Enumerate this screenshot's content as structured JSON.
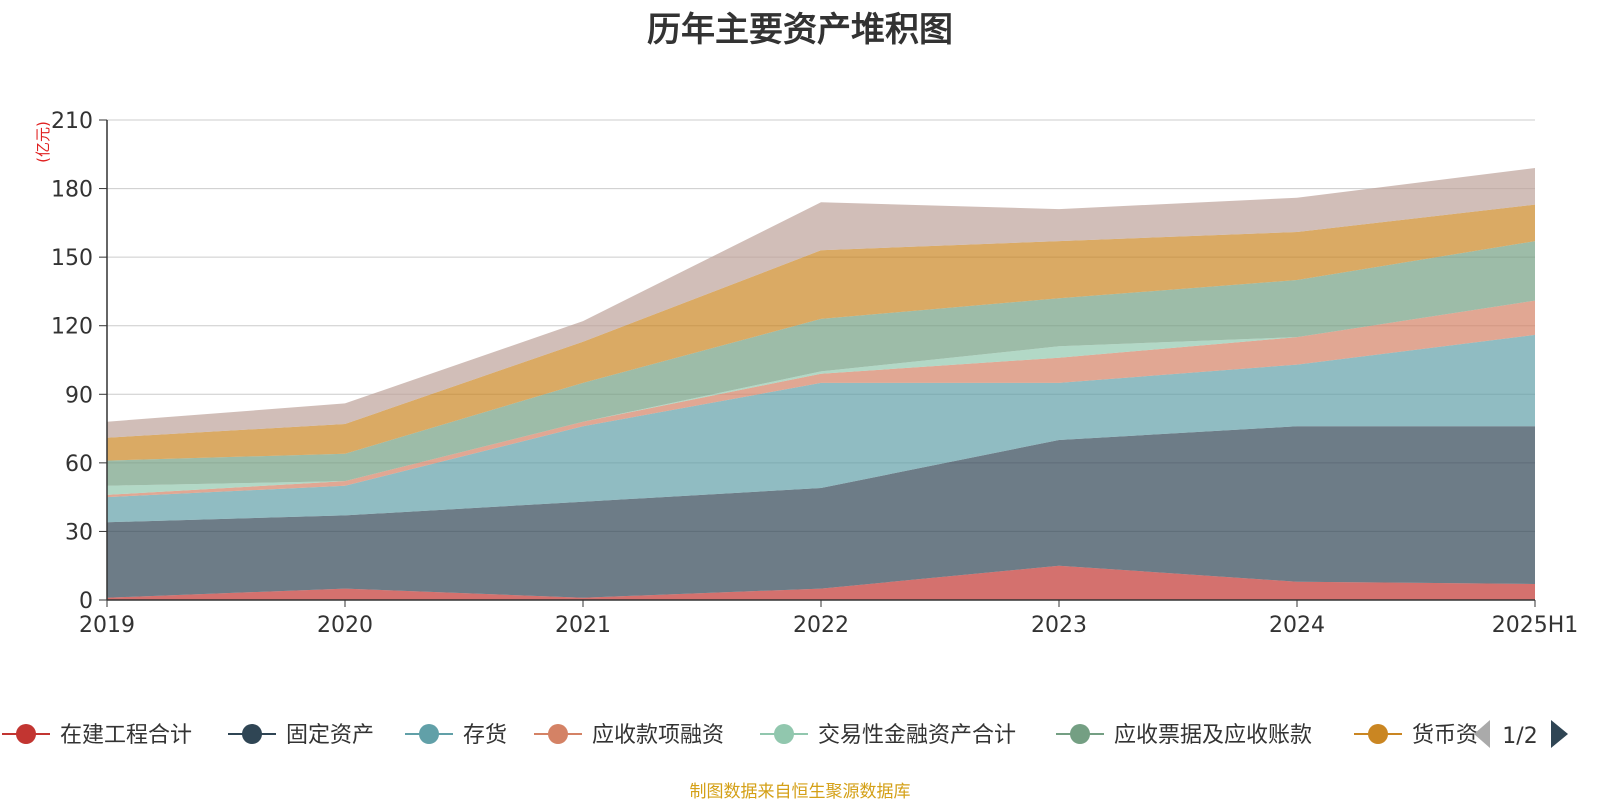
{
  "chart_data": {
    "type": "area",
    "stacked": true,
    "title": "历年主要资产堆积图",
    "unit": "(亿元)",
    "categories": [
      "2019",
      "2020",
      "2021",
      "2022",
      "2023",
      "2024",
      "2025H1"
    ],
    "ylim": [
      0,
      210
    ],
    "yticks": [
      0,
      30,
      60,
      90,
      120,
      150,
      180,
      210
    ],
    "grid": true,
    "series": [
      {
        "name": "在建工程合计",
        "color": "#c23531",
        "values": [
          1,
          5,
          1,
          5,
          15,
          8,
          7
        ]
      },
      {
        "name": "固定资产",
        "color": "#2f4554",
        "values": [
          33,
          32,
          42,
          44,
          55,
          68,
          69
        ]
      },
      {
        "name": "存货",
        "color": "#61a0a8",
        "values": [
          11,
          13,
          33,
          46,
          25,
          27,
          40
        ]
      },
      {
        "name": "应收款项融资",
        "color": "#d48265",
        "values": [
          1,
          2,
          2,
          4,
          11,
          12,
          15
        ]
      },
      {
        "name": "交易性金融资产合计",
        "color": "#91c7ae",
        "values": [
          4,
          0,
          0,
          1,
          5,
          0,
          0
        ]
      },
      {
        "name": "应收票据及应收账款",
        "color": "#749f83",
        "values": [
          11,
          12,
          17,
          23,
          21,
          25,
          26
        ]
      },
      {
        "name": "货币资",
        "color": "#ca8622",
        "values": [
          10,
          13,
          18,
          30,
          25,
          21,
          16
        ]
      },
      {
        "color": "#bda29a",
        "values": [
          7,
          9,
          9,
          21,
          14,
          15,
          16
        ]
      }
    ],
    "legend": {
      "position": "bottom",
      "page": "1/2"
    }
  },
  "footer": "制图数据来自恒生聚源数据库"
}
